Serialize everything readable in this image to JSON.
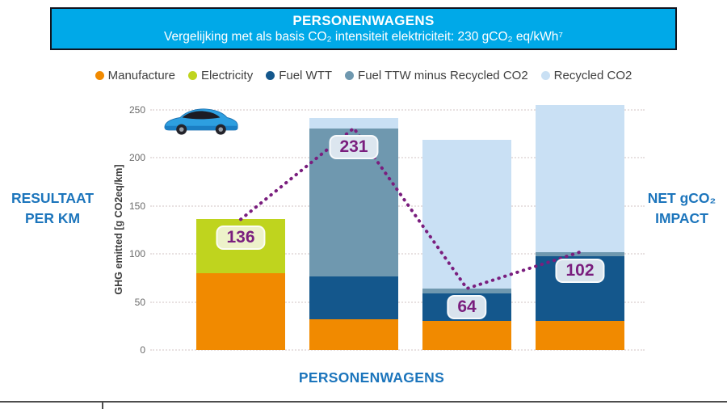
{
  "banner": {
    "title": "PERSONENWAGENS",
    "subtitle": "Vergelijking met als basis CO₂ intensiteit elektriciteit: 230 gCO₂ eq/kWh⁷"
  },
  "side_labels": {
    "left_line1": "RESULTAAT",
    "left_line2": "PER KM",
    "right_line1": "NET gCO₂",
    "right_line2": "IMPACT"
  },
  "colors": {
    "banner_bg": "#00A9E8",
    "banner_border": "#10141f",
    "accent_blue_text": "#1C75BC",
    "net_line_purple": "#7A1E7E",
    "gridline": "#e8e1e1"
  },
  "chart_data": {
    "type": "bar",
    "stacked": true,
    "title": "PERSONENWAGENS",
    "subtitle": "Vergelijking met als basis CO₂ intensiteit elektriciteit: 230 gCO₂ eq/kWh⁷",
    "xlabel": "PERSONENWAGENS",
    "ylabel": "GHG emitted [g CO2eq/km]",
    "ylim": [
      0,
      250
    ],
    "yticks": [
      0,
      50,
      100,
      150,
      200,
      250
    ],
    "grid": "horizontal-dotted",
    "legend_position": "top",
    "series": [
      {
        "name": "Manufacture",
        "color": "#F18A00",
        "values": [
          80,
          32,
          30,
          30
        ]
      },
      {
        "name": "Electricity",
        "color": "#BFD41E",
        "values": [
          56,
          0,
          0,
          0
        ]
      },
      {
        "name": "Fuel WTT",
        "color": "#14578C",
        "values": [
          0,
          45,
          29,
          68
        ]
      },
      {
        "name": "Fuel TTW minus Recycled CO2",
        "color": "#6F98AF",
        "values": [
          0,
          154,
          5,
          4
        ]
      },
      {
        "name": "Recycled CO2",
        "color": "#C9E0F4",
        "values": [
          0,
          11,
          155,
          153
        ]
      }
    ],
    "net_line": {
      "name": "NET gCO₂ IMPACT",
      "color": "#7A1E7E",
      "values": [
        136,
        231,
        64,
        102
      ],
      "labels": [
        {
          "text": "136",
          "bg": "#EDF2CA"
        },
        {
          "text": "231",
          "bg": "#DCE6EF"
        },
        {
          "text": "64",
          "bg": "#D8E3ED"
        },
        {
          "text": "102",
          "bg": "#D8E3ED"
        }
      ]
    }
  }
}
